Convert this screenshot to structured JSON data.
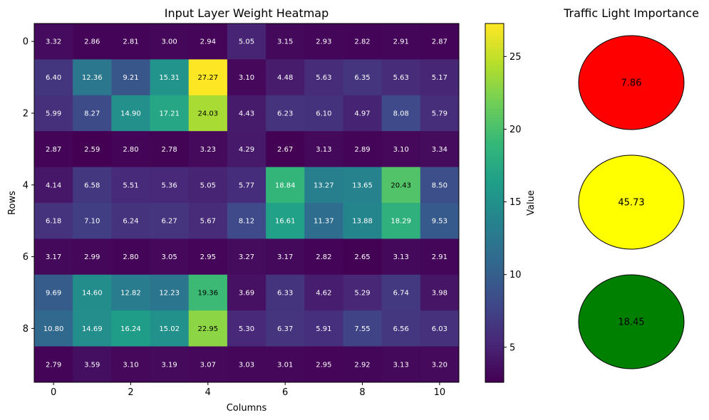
{
  "chart_data": [
    {
      "type": "heatmap",
      "title": "Input Layer Weight Heatmap",
      "xlabel": "Columns",
      "ylabel": "Rows",
      "x_ticks": [
        "0",
        "2",
        "4",
        "6",
        "8",
        "10"
      ],
      "y_ticks": [
        "0",
        "2",
        "4",
        "6",
        "8"
      ],
      "matrix": [
        [
          3.32,
          2.86,
          2.81,
          3.0,
          2.94,
          5.05,
          3.15,
          2.93,
          2.82,
          2.91,
          2.87
        ],
        [
          6.4,
          12.36,
          9.21,
          15.31,
          27.27,
          3.1,
          4.48,
          5.63,
          6.35,
          5.63,
          5.17
        ],
        [
          5.99,
          8.27,
          14.9,
          17.21,
          24.03,
          4.43,
          6.23,
          6.1,
          4.97,
          8.08,
          5.79
        ],
        [
          2.87,
          2.59,
          2.8,
          2.78,
          3.23,
          4.29,
          2.67,
          3.13,
          2.89,
          3.1,
          3.34
        ],
        [
          4.14,
          6.58,
          5.51,
          5.36,
          5.05,
          5.77,
          18.84,
          13.27,
          13.65,
          20.43,
          8.5
        ],
        [
          6.18,
          7.1,
          6.24,
          6.27,
          5.67,
          8.12,
          16.61,
          11.37,
          13.88,
          18.29,
          9.53
        ],
        [
          3.17,
          2.99,
          2.8,
          3.05,
          2.95,
          3.27,
          3.17,
          2.82,
          2.65,
          3.13,
          2.91
        ],
        [
          9.69,
          14.6,
          12.82,
          12.23,
          19.36,
          3.69,
          6.33,
          4.62,
          5.29,
          6.74,
          3.98
        ],
        [
          10.8,
          14.69,
          16.24,
          15.02,
          22.95,
          5.3,
          6.37,
          5.91,
          7.55,
          6.56,
          6.03
        ],
        [
          2.79,
          3.59,
          3.1,
          3.19,
          3.07,
          3.03,
          3.01,
          2.95,
          2.92,
          3.13,
          3.2
        ]
      ],
      "colormap": "viridis",
      "colorbar": {
        "label": "Value",
        "ticks": [
          "5",
          "10",
          "15",
          "20",
          "25"
        ],
        "tick_values": [
          5,
          10,
          15,
          20,
          25
        ],
        "vmin": 2.59,
        "vmax": 27.27
      }
    },
    {
      "type": "other",
      "title": "Traffic Light Importance",
      "lights": [
        {
          "name": "red",
          "color": "#ff0000",
          "value": "7.86"
        },
        {
          "name": "yellow",
          "color": "#ffff00",
          "value": "45.73"
        },
        {
          "name": "green",
          "color": "#008000",
          "value": "18.45"
        }
      ]
    }
  ]
}
